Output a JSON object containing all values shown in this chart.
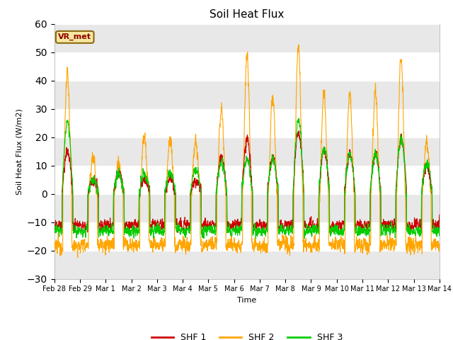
{
  "title": "Soil Heat Flux",
  "ylabel": "Soil Heat Flux (W/m2)",
  "xlabel": "Time",
  "ylim": [
    -30,
    60
  ],
  "yticks": [
    -30,
    -20,
    -10,
    0,
    10,
    20,
    30,
    40,
    50,
    60
  ],
  "colors": {
    "SHF 1": "#cc0000",
    "SHF 2": "#ffa500",
    "SHF 3": "#00cc00"
  },
  "tick_labels": [
    "Feb 28",
    "Feb 29",
    "Mar 1",
    "Mar 2",
    "Mar 3",
    "Mar 4",
    "Mar 5",
    "Mar 6",
    "Mar 7",
    "Mar 8",
    "Mar 9",
    "Mar 10",
    "Mar 11",
    "Mar 12",
    "Mar 13",
    "Mar 14"
  ],
  "annotation_text": "VR_met",
  "plot_bg": "#ffffff",
  "fig_bg": "#ffffff",
  "band_color": "#e8e8e8",
  "line_width": 0.8
}
